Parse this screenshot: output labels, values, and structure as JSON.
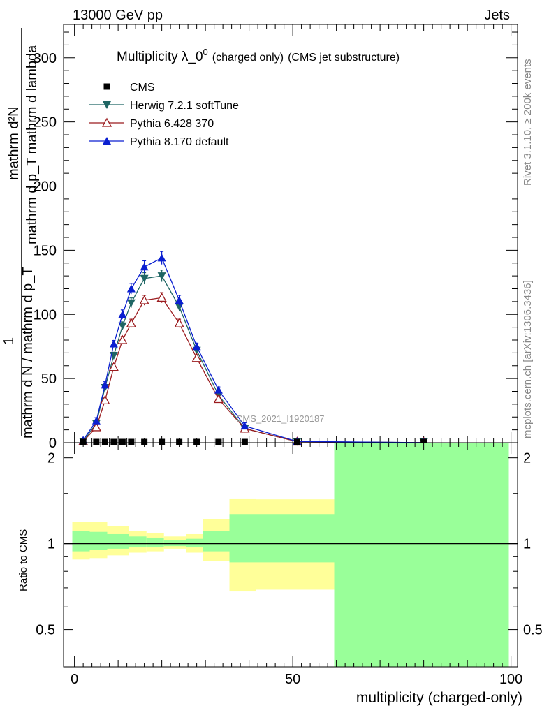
{
  "header": {
    "left": "13000 GeV pp",
    "right": "Jets"
  },
  "side": {
    "rivet": "Rivet 3.1.10, ≥ 200k events",
    "mcplots": "mcplots.cern.ch [arXiv:1306.3436]"
  },
  "main_ylabel": {
    "num": "mathrm d²N",
    "den": "mathrm d p_T mathrm d lambda",
    "one": "1",
    "den2": "mathrm d N / mathrm d p_T"
  },
  "chart_data": [
    {
      "type": "line",
      "title": "Multiplicity λ_0⁰ (charged only) (CMS jet substructure)",
      "title_main": "Multiplicity λ_0",
      "title_sup": "0",
      "title_small": "(charged only)",
      "title_tail": "(CMS jet substructure)",
      "watermark": "CMS_2021_I1920187",
      "xlabel": "multiplicity (charged-only)",
      "ylabel": "1/(dN/dpT) d²N/(dpT dλ)",
      "xlim": [
        -2.5,
        101.5
      ],
      "ylim": [
        0,
        326
      ],
      "yticks": [
        0,
        50,
        100,
        150,
        200,
        250,
        300
      ],
      "xticks": [
        0,
        50,
        100
      ],
      "legend_position": "top-left",
      "series": [
        {
          "name": "CMS",
          "marker": "square",
          "color": "#000000",
          "x": [
            2,
            5,
            7,
            9,
            11,
            13,
            16,
            20,
            24,
            28,
            33,
            39,
            51,
            80
          ],
          "y": [
            0.5,
            0.5,
            0.5,
            0.5,
            0.5,
            0.5,
            0.5,
            0.5,
            0.5,
            0.5,
            0.5,
            0.5,
            0.3,
            0.3
          ]
        },
        {
          "name": "Herwig 7.2.1 softTune",
          "marker": "triangle-down",
          "color": "#1f6664",
          "x": [
            2,
            5,
            7,
            9,
            11,
            13,
            16,
            20,
            24,
            28,
            33,
            39,
            51,
            80
          ],
          "y": [
            1,
            15,
            43,
            68,
            91,
            109,
            128,
            130,
            106,
            72,
            37,
            11,
            0.8,
            0.05
          ]
        },
        {
          "name": "Pythia 6.428 370",
          "marker": "triangle-open",
          "color": "#9b1b1e",
          "x": [
            2,
            5,
            7,
            9,
            11,
            13,
            16,
            20,
            24,
            28,
            33,
            39,
            51,
            80
          ],
          "y": [
            1,
            12,
            33,
            59,
            80,
            93,
            111,
            113,
            93,
            66,
            34,
            11,
            0.8,
            0.05
          ]
        },
        {
          "name": "Pythia 8.170 default",
          "marker": "triangle-up",
          "color": "#0a1fd0",
          "x": [
            2,
            5,
            7,
            9,
            11,
            13,
            16,
            20,
            24,
            28,
            33,
            39,
            51,
            80
          ],
          "y": [
            2,
            17,
            45,
            77,
            100,
            120,
            137,
            144,
            111,
            75,
            41,
            13,
            1,
            0.05
          ]
        }
      ]
    },
    {
      "type": "area",
      "title": "Ratio to CMS",
      "ylabel": "Ratio to CMS",
      "xlabel": "multiplicity (charged-only)",
      "xlim": [
        -2.5,
        101.5
      ],
      "ylim": [
        0.37,
        2.26
      ],
      "yticks": [
        0.5,
        1,
        2
      ],
      "ytick_labels": [
        "0.5",
        "1",
        "2"
      ],
      "reference_line": 1,
      "bins": [
        [
          -0.5,
          3.5
        ],
        [
          3.5,
          7.5
        ],
        [
          7.5,
          12.5
        ],
        [
          12.5,
          16.5
        ],
        [
          16.5,
          20.5
        ],
        [
          20.5,
          25.5
        ],
        [
          25.5,
          29.5
        ],
        [
          29.5,
          35.5
        ],
        [
          35.5,
          41.5
        ],
        [
          41.5,
          59.5
        ],
        [
          59.5,
          99.5
        ]
      ],
      "total_uncertainty": [
        [
          0.88,
          1.19
        ],
        [
          0.89,
          1.19
        ],
        [
          0.91,
          1.15
        ],
        [
          0.93,
          1.11
        ],
        [
          0.94,
          1.09
        ],
        [
          0.96,
          1.06
        ],
        [
          0.93,
          1.08
        ],
        [
          0.87,
          1.22
        ],
        [
          0.68,
          1.44
        ],
        [
          0.69,
          1.43
        ],
        [
          0.0,
          3.0
        ]
      ],
      "stat_uncertainty": [
        [
          0.94,
          1.11
        ],
        [
          0.95,
          1.1
        ],
        [
          0.96,
          1.08
        ],
        [
          0.97,
          1.06
        ],
        [
          0.97,
          1.05
        ],
        [
          0.98,
          1.03
        ],
        [
          0.97,
          1.04
        ],
        [
          0.94,
          1.11
        ],
        [
          0.86,
          1.27
        ],
        [
          0.86,
          1.27
        ],
        [
          0.0,
          3.0
        ]
      ],
      "colors": {
        "total": "#ffff99",
        "stat": "#99ff99"
      }
    }
  ]
}
